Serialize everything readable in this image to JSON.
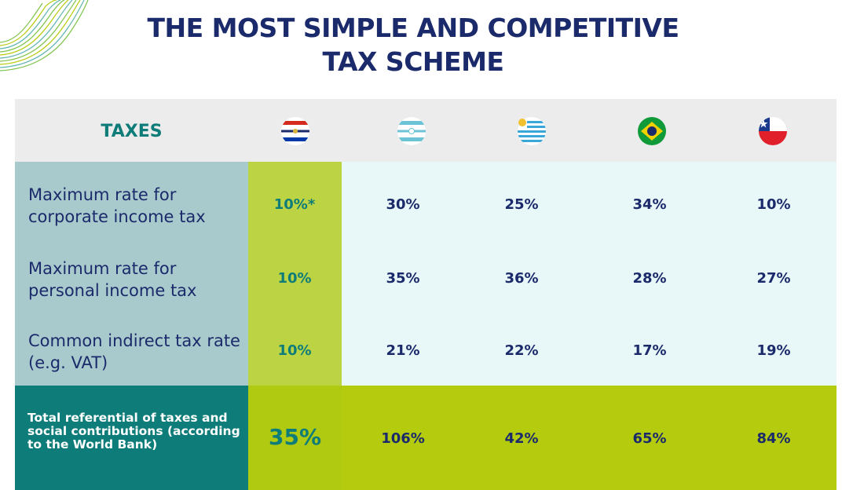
{
  "title": {
    "line1": "THE MOST SIMPLE AND COMPETITIVE",
    "line2": "TAX SCHEME"
  },
  "table": {
    "header_label": "TAXES",
    "flags": [
      "paraguay-flag-icon",
      "argentina-flag-icon",
      "uruguay-flag-icon",
      "brazil-flag-icon",
      "chile-flag-icon"
    ],
    "rows": [
      {
        "label": "Maximum rate for corporate income tax",
        "values": [
          "10%*",
          "30%",
          "25%",
          "34%",
          "10%"
        ]
      },
      {
        "label": "Maximum rate for personal income tax",
        "values": [
          "10%",
          "35%",
          "36%",
          "28%",
          "27%"
        ]
      },
      {
        "label": "Common indirect tax rate (e.g. VAT)",
        "values": [
          "10%",
          "21%",
          "22%",
          "17%",
          "19%"
        ]
      }
    ],
    "total": {
      "label": "Total referential of taxes and social contributions (according to the World Bank)",
      "values": [
        "35%",
        "106%",
        "42%",
        "65%",
        "84%"
      ]
    }
  },
  "colors": {
    "title": "#1b2a6b",
    "teal": "#0e7c78",
    "lime": "#b4cb0e",
    "label_bg": "#a9cacc",
    "cell_bg": "#e8f7f7"
  }
}
